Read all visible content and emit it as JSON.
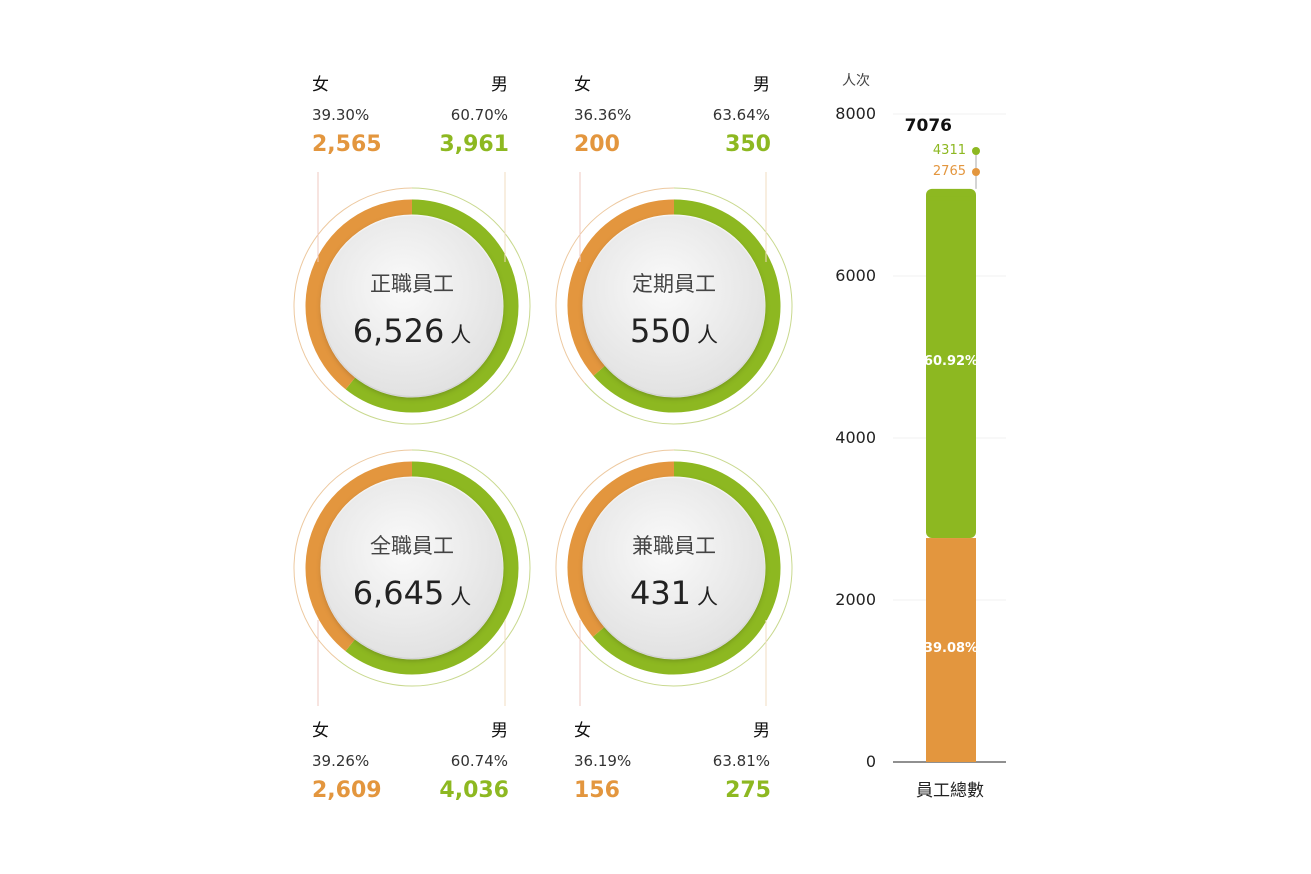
{
  "colors": {
    "female": "#e3963e",
    "male": "#8db821"
  },
  "chart_data": [
    {
      "type": "pie",
      "title": "正職員工",
      "total": "6,526",
      "unit": "人",
      "female": {
        "label": "女",
        "pct": "39.30%",
        "count": "2,565",
        "value": 39.3
      },
      "male": {
        "label": "男",
        "pct": "60.70%",
        "count": "3,961",
        "value": 60.7
      }
    },
    {
      "type": "pie",
      "title": "定期員工",
      "total": "550",
      "unit": "人",
      "female": {
        "label": "女",
        "pct": "36.36%",
        "count": "200",
        "value": 36.36
      },
      "male": {
        "label": "男",
        "pct": "63.64%",
        "count": "350",
        "value": 63.64
      }
    },
    {
      "type": "pie",
      "title": "全職員工",
      "total": "6,645",
      "unit": "人",
      "female": {
        "label": "女",
        "pct": "39.26%",
        "count": "2,609",
        "value": 39.26
      },
      "male": {
        "label": "男",
        "pct": "60.74%",
        "count": "4,036",
        "value": 60.74
      }
    },
    {
      "type": "pie",
      "title": "兼職員工",
      "total": "431",
      "unit": "人",
      "female": {
        "label": "女",
        "pct": "36.19%",
        "count": "156",
        "value": 36.19
      },
      "male": {
        "label": "男",
        "pct": "63.81%",
        "count": "275",
        "value": 63.81
      }
    },
    {
      "type": "bar",
      "stacked": true,
      "ylabel": "人次",
      "ylim": [
        0,
        8000
      ],
      "yticks": [
        "0",
        "2000",
        "4000",
        "6000",
        "8000"
      ],
      "categories": [
        "員工總數"
      ],
      "total": "7076",
      "series": [
        {
          "name": "2765",
          "value": 2765,
          "pct_label": "39.08%",
          "color": "#e3963e"
        },
        {
          "name": "4311",
          "value": 4311,
          "pct_label": "60.92%",
          "color": "#8db821"
        }
      ]
    }
  ]
}
